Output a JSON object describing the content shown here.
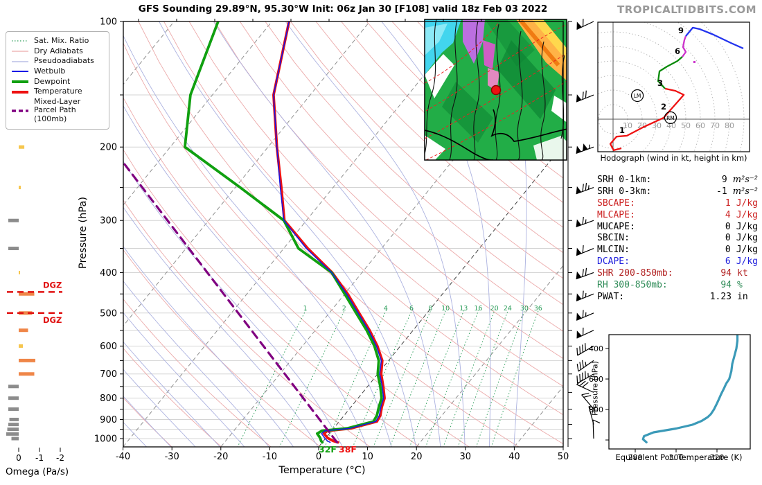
{
  "title": "GFS Sounding 29.89°N, 95.30°W Init: 06z Jan 30 [F108] valid 18z Feb 03 2022",
  "watermark": "TROPICALTIDBITS.COM",
  "legend": {
    "items": [
      {
        "label": "Sat. Mix. Ratio",
        "style": "dotted",
        "color": "#2e9e5b",
        "width": 1.2
      },
      {
        "label": "Dry Adiabats",
        "style": "solid",
        "color": "#ecaaaa",
        "width": 1.2
      },
      {
        "label": "Pseudoadiabats",
        "style": "solid",
        "color": "#acb2e0",
        "width": 1.2
      },
      {
        "label": "Wetbulb",
        "style": "solid",
        "color": "#1515e6",
        "width": 2
      },
      {
        "label": "Dewpoint",
        "style": "solid",
        "color": "#10a010",
        "width": 4
      },
      {
        "label": "Temperature",
        "style": "solid",
        "color": "#ee1111",
        "width": 4
      },
      {
        "label": "Mixed-Layer\nParcel Path (100mb)",
        "style": "dashed",
        "color": "#800080",
        "width": 3.5
      }
    ]
  },
  "chart_data": [
    {
      "id": "skewt",
      "type": "line",
      "xlabel": "Temperature (°C)",
      "ylabel": "Pressure (hPa)",
      "xlim": [
        -40,
        50
      ],
      "x_ticks": [
        -40,
        -30,
        -20,
        -10,
        0,
        10,
        20,
        30,
        40,
        50
      ],
      "p_ticks": [
        100,
        200,
        300,
        400,
        500,
        600,
        700,
        800,
        900,
        1000
      ],
      "p_range": [
        100,
        1050
      ],
      "isotherm_step_c": 20,
      "mixing_ratio_lines_gkg": [
        1,
        2,
        4,
        6,
        8,
        10,
        13,
        16,
        20,
        24,
        30,
        36
      ],
      "series": [
        {
          "name": "temperature",
          "color": "#ee1111",
          "points_p_t": [
            [
              100,
              -76.5
            ],
            [
              150,
              -67.5
            ],
            [
              200,
              -58.2
            ],
            [
              250,
              -50.6
            ],
            [
              300,
              -44.5
            ],
            [
              350,
              -35.1
            ],
            [
              400,
              -26.1
            ],
            [
              450,
              -19.4
            ],
            [
              500,
              -13.9
            ],
            [
              550,
              -8.9
            ],
            [
              600,
              -4.7
            ],
            [
              650,
              -1.3
            ],
            [
              700,
              0.7
            ],
            [
              750,
              3.2
            ],
            [
              800,
              5.4
            ],
            [
              840,
              6.3
            ],
            [
              880,
              7.4
            ],
            [
              910,
              7.7
            ],
            [
              945,
              3.6
            ],
            [
              958,
              -0.9
            ],
            [
              973,
              -1.1
            ],
            [
              996,
              0.3
            ],
            [
              1013,
              2.0
            ],
            [
              1021,
              3.2
            ]
          ]
        },
        {
          "name": "dewpoint",
          "color": "#10a010",
          "points_p_t": [
            [
              100,
              -91
            ],
            [
              150,
              -84.5
            ],
            [
              200,
              -77
            ],
            [
              250,
              -59
            ],
            [
              300,
              -44.6
            ],
            [
              350,
              -37
            ],
            [
              400,
              -26.2
            ],
            [
              450,
              -20
            ],
            [
              500,
              -14.5
            ],
            [
              550,
              -9.5
            ],
            [
              600,
              -5.3
            ],
            [
              650,
              -2.0
            ],
            [
              700,
              0.0
            ],
            [
              750,
              2.6
            ],
            [
              800,
              4.8
            ],
            [
              840,
              5.7
            ],
            [
              880,
              6.7
            ],
            [
              910,
              7.0
            ],
            [
              945,
              2.8
            ],
            [
              958,
              -2.0
            ],
            [
              973,
              -2.5
            ],
            [
              996,
              -1.2
            ],
            [
              1013,
              -0.5
            ],
            [
              1021,
              0.0
            ]
          ]
        },
        {
          "name": "wetbulb",
          "color": "#1515e6",
          "points_p_t": [
            [
              100,
              -76.5
            ],
            [
              150,
              -67.5
            ],
            [
              200,
              -58.2
            ],
            [
              250,
              -50.8
            ],
            [
              300,
              -44.6
            ],
            [
              350,
              -35.4
            ],
            [
              400,
              -26.2
            ],
            [
              450,
              -19.6
            ],
            [
              500,
              -14.1
            ],
            [
              550,
              -9.1
            ],
            [
              600,
              -4.9
            ],
            [
              650,
              -1.5
            ],
            [
              700,
              0.4
            ],
            [
              750,
              3.0
            ],
            [
              800,
              5.2
            ],
            [
              840,
              6.1
            ],
            [
              880,
              7.2
            ],
            [
              910,
              7.5
            ],
            [
              945,
              3.3
            ],
            [
              958,
              -1.4
            ],
            [
              973,
              -1.6
            ],
            [
              996,
              -0.3
            ],
            [
              1013,
              0.8
            ],
            [
              1021,
              1.6
            ]
          ]
        },
        {
          "name": "mixed_layer_parcel_path",
          "color": "#800080",
          "dashed": true,
          "points_p_t": [
            [
              1021,
              3.0
            ],
            [
              218,
              -87
            ]
          ]
        }
      ],
      "surface_labels": [
        {
          "text": "32F",
          "color": "#10a010"
        },
        {
          "text": "38F",
          "color": "#ee1111"
        }
      ]
    },
    {
      "id": "omega",
      "type": "bar",
      "xlabel": "Omega (Pa/s)",
      "x_ticks": [
        0,
        -1,
        -2
      ],
      "bars_p_value": [
        [
          200,
          -0.27
        ],
        [
          250,
          -0.1
        ],
        [
          300,
          0.5
        ],
        [
          350,
          0.5
        ],
        [
          400,
          -0.05
        ],
        [
          450,
          -0.75
        ],
        [
          500,
          -0.65
        ],
        [
          550,
          -0.45
        ],
        [
          600,
          -0.2
        ],
        [
          650,
          -0.8
        ],
        [
          700,
          -0.75
        ],
        [
          750,
          0.5
        ],
        [
          800,
          0.5
        ],
        [
          850,
          0.5
        ],
        [
          900,
          0.45
        ],
        [
          925,
          0.5
        ],
        [
          950,
          0.55
        ],
        [
          975,
          0.6
        ],
        [
          1000,
          0.35
        ]
      ],
      "colors": {
        "ascent_strong": "#ef8648",
        "ascent_weak": "#f6c64e",
        "descent": "#8c8c8c"
      },
      "dgz_markers": [
        {
          "p": 445,
          "label": "DGZ",
          "label_side": "above",
          "color": "#e01010"
        },
        {
          "p": 500,
          "label": "DGZ",
          "label_side": "below",
          "color": "#e01010"
        }
      ]
    },
    {
      "id": "hodograph",
      "type": "line",
      "caption": "Hodograph (wind in kt, height in km)",
      "ring_step_kt": 10,
      "ring_labels": [
        10,
        20,
        30,
        40,
        50,
        60,
        70,
        80
      ],
      "segments": [
        {
          "km": "0-3",
          "color": "#ee1111",
          "points_uv_kt": [
            [
              5.7,
              -20
            ],
            [
              0.5,
              -21.4
            ],
            [
              -1.9,
              -17
            ],
            [
              2.4,
              -12
            ],
            [
              9.5,
              -11.4
            ],
            [
              21.4,
              -5.2
            ],
            [
              34.8,
              1
            ],
            [
              38.1,
              4.8
            ],
            [
              48.6,
              16.7
            ],
            [
              42.9,
              19.5
            ],
            [
              35.7,
              21
            ]
          ]
        },
        {
          "km": "3-6",
          "color": "#0a8a0a",
          "points_uv_kt": [
            [
              35.7,
              21
            ],
            [
              31,
              26.2
            ],
            [
              31.9,
              32.9
            ],
            [
              37.1,
              36.2
            ],
            [
              44.3,
              40
            ],
            [
              47.6,
              42.9
            ]
          ]
        },
        {
          "km": "6-9",
          "color": "#cc33cc",
          "points_uv_kt": [
            [
              47.6,
              42.9
            ],
            [
              50,
              46.2
            ],
            [
              48.1,
              49.5
            ],
            [
              49,
              54.3
            ],
            [
              50,
              57.1
            ]
          ]
        },
        {
          "km": "9+",
          "color": "#2233ee",
          "points_uv_kt": [
            [
              50,
              57.1
            ],
            [
              54.8,
              62.9
            ],
            [
              59.5,
              61.9
            ],
            [
              69,
              58.1
            ],
            [
              81,
              52.4
            ],
            [
              89.5,
              48.6
            ]
          ]
        }
      ],
      "height_labels": [
        {
          "text": "1",
          "u": 9.5,
          "v": -11.4
        },
        {
          "text": "2",
          "u": 38.1,
          "v": 4.8
        },
        {
          "text": "3",
          "u": 35.7,
          "v": 21
        },
        {
          "text": "6",
          "u": 47.6,
          "v": 42.9
        },
        {
          "text": "9",
          "u": 50,
          "v": 57.1
        }
      ],
      "storm_motion_markers": [
        {
          "text": "RM",
          "u": 39.5,
          "v": 1
        },
        {
          "text": "LM",
          "u": 16.7,
          "v": 16.2
        }
      ],
      "extra_dot": {
        "color": "#cc33cc",
        "u": 55.2,
        "v": 40
      }
    },
    {
      "id": "theta_e",
      "type": "line",
      "xlabel": "Equivalent Pot. Temperature (K)",
      "ylabel": "Pressure (hPa)",
      "x_ticks": [
        280,
        300,
        320
      ],
      "y_ticks": [
        400,
        600,
        800
      ],
      "xlim": [
        267,
        336
      ],
      "ylim": [
        309,
        1059
      ],
      "color": "#3b9ab8",
      "points_p_k": [
        [
          310,
          330
        ],
        [
          350,
          330
        ],
        [
          400,
          329.5
        ],
        [
          450,
          328.5
        ],
        [
          500,
          327.5
        ],
        [
          550,
          327
        ],
        [
          600,
          326
        ],
        [
          630,
          324.5
        ],
        [
          660,
          323.5
        ],
        [
          700,
          322
        ],
        [
          730,
          321
        ],
        [
          760,
          320
        ],
        [
          800,
          318.5
        ],
        [
          830,
          317
        ],
        [
          850,
          315.5
        ],
        [
          875,
          312.5
        ],
        [
          900,
          308
        ],
        [
          925,
          300
        ],
        [
          950,
          289
        ],
        [
          975,
          284.3
        ],
        [
          995,
          283.8
        ],
        [
          1015,
          285.5
        ]
      ]
    },
    {
      "id": "indices",
      "type": "table",
      "rows": [
        {
          "label": "SRH 0-1km:",
          "value": "9",
          "unit": "m²s⁻²",
          "color": "#000000",
          "math_unit": true
        },
        {
          "label": "SRH 0-3km:",
          "value": "-1",
          "unit": "m²s⁻²",
          "color": "#000000",
          "math_unit": true
        },
        {
          "label": "SBCAPE:",
          "value": "1",
          "unit": "J/kg",
          "color": "#cc2222",
          "math_unit": false
        },
        {
          "label": "MLCAPE:",
          "value": "4",
          "unit": "J/kg",
          "color": "#cc2222",
          "math_unit": false
        },
        {
          "label": "MUCAPE:",
          "value": "0",
          "unit": "J/kg",
          "color": "#000000",
          "math_unit": false
        },
        {
          "label": "SBCIN:",
          "value": "0",
          "unit": "J/kg",
          "color": "#000000",
          "math_unit": false
        },
        {
          "label": "MLCIN:",
          "value": "0",
          "unit": "J/kg",
          "color": "#000000",
          "math_unit": false
        },
        {
          "label": "DCAPE:",
          "value": "6",
          "unit": "J/kg",
          "color": "#2222dd",
          "math_unit": false
        },
        {
          "label": "SHR 200-850mb:",
          "value": "94",
          "unit": "kt",
          "color": "#b22222",
          "math_unit": false
        },
        {
          "label": "RH 300-850mb:",
          "value": "94",
          "unit": "%",
          "color": "#2e8b57",
          "math_unit": false
        },
        {
          "label": "PWAT:",
          "value": "1.23",
          "unit": "in",
          "color": "#000000",
          "math_unit": false
        }
      ]
    },
    {
      "id": "wind_barbs",
      "type": "barbs",
      "levels_p_kt_dir": [
        [
          100,
          60,
          245
        ],
        [
          150,
          70,
          248
        ],
        [
          200,
          105,
          250
        ],
        [
          250,
          75,
          250
        ],
        [
          300,
          65,
          250
        ],
        [
          350,
          60,
          248
        ],
        [
          400,
          70,
          250
        ],
        [
          450,
          65,
          248
        ],
        [
          500,
          65,
          247
        ],
        [
          550,
          60,
          245
        ],
        [
          600,
          40,
          240
        ],
        [
          650,
          35,
          235
        ],
        [
          700,
          45,
          240
        ],
        [
          775,
          30,
          295
        ],
        [
          850,
          20,
          320
        ],
        [
          925,
          15,
          345
        ],
        [
          1000,
          12,
          358
        ]
      ]
    },
    {
      "id": "map_inset",
      "type": "map",
      "station_marker_color": "#ee1111"
    }
  ]
}
